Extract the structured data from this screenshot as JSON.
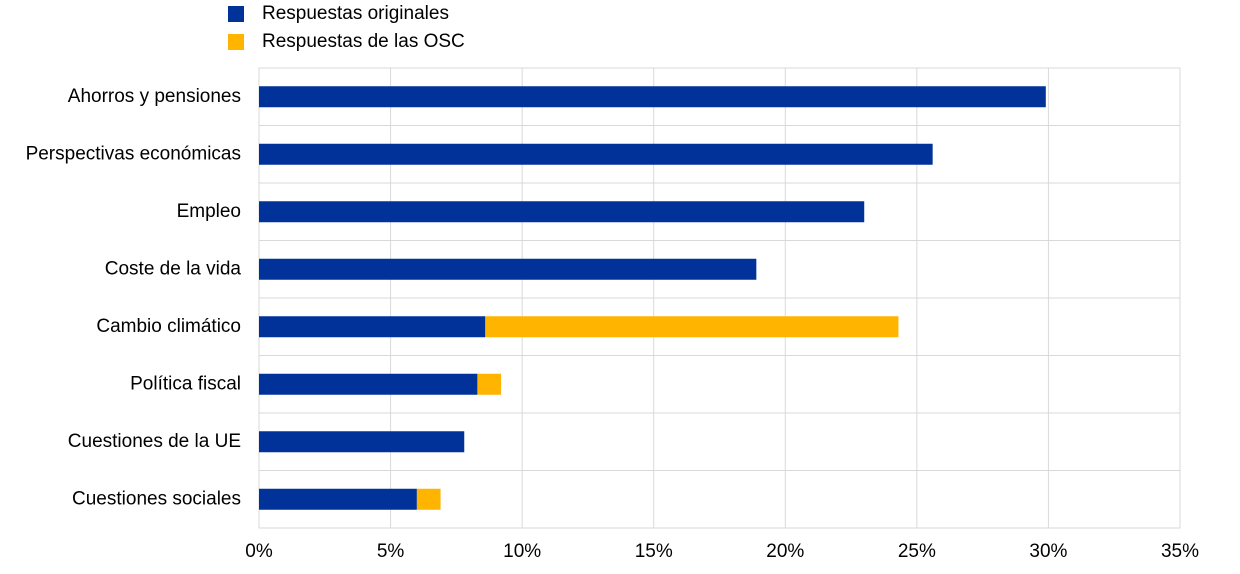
{
  "chart_data": {
    "type": "hbar_stacked",
    "categories": [
      "Ahorros y pensiones",
      "Perspectivas económicas",
      "Empleo",
      "Coste de la vida",
      "Cambio climático",
      "Política fiscal",
      "Cuestiones de la UE",
      "Cuestiones sociales"
    ],
    "series": [
      {
        "name": "Respuestas originales",
        "color": "#003299",
        "values": [
          29.9,
          25.6,
          23.0,
          18.9,
          8.6,
          8.3,
          7.8,
          6.0
        ]
      },
      {
        "name": "Respuestas de las OSC",
        "color": "#ffb400",
        "values": [
          0,
          0,
          0,
          0,
          15.7,
          0.9,
          0,
          0.9
        ]
      }
    ],
    "xlim": [
      0,
      35
    ],
    "xticks": [
      {
        "value": 0,
        "label": "0%"
      },
      {
        "value": 5,
        "label": "5%"
      },
      {
        "value": 10,
        "label": "10%"
      },
      {
        "value": 15,
        "label": "15%"
      },
      {
        "value": 20,
        "label": "20%"
      },
      {
        "value": 25,
        "label": "25%"
      },
      {
        "value": 30,
        "label": "30%"
      },
      {
        "value": 35,
        "label": "35%"
      }
    ],
    "grid": true
  }
}
